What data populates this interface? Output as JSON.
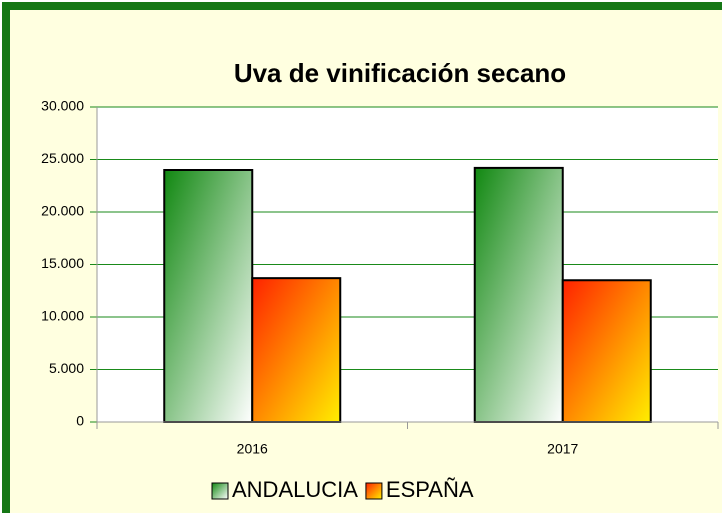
{
  "chart_data": {
    "type": "bar",
    "title": "Uva de vinificación secano",
    "categories": [
      "2016",
      "2017"
    ],
    "series": [
      {
        "name": "ANDALUCIA",
        "color": "#118811",
        "values": [
          24000,
          24200
        ]
      },
      {
        "name": "ESPAÑA",
        "color": "#ff2200",
        "values": [
          13700,
          13500
        ]
      }
    ],
    "ylim": [
      0,
      30000
    ],
    "yticks": [
      0,
      {
        "value": 5000,
        "label": "5.000"
      },
      {
        "value": 10000,
        "label": "10.000"
      },
      {
        "value": 15000,
        "label": "15.000"
      },
      {
        "value": 20000,
        "label": "20.000"
      },
      {
        "value": 25000,
        "label": "25.000"
      },
      {
        "value": 30000,
        "label": "30.000"
      }
    ],
    "grid": true,
    "legend": "bottom"
  }
}
